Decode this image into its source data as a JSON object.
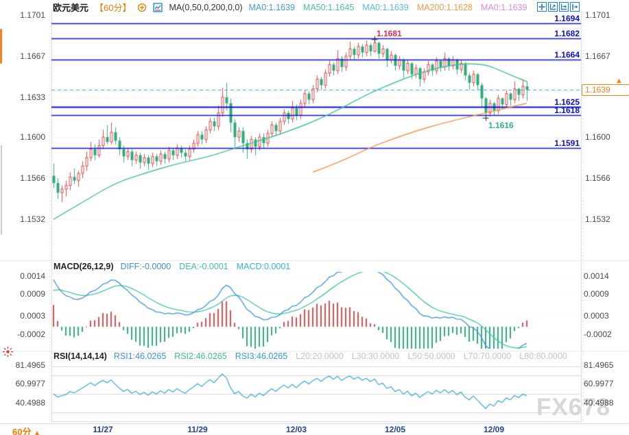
{
  "header": {
    "title": "欧元美元",
    "timeframe": "【60分】",
    "ma_settings": "MA(0,50,0,200,0,0)",
    "readouts": [
      {
        "text": "MA0:1.1639",
        "color": "#3f9be0"
      },
      {
        "text": "MA50:1.1645",
        "color": "#43c39b"
      },
      {
        "text": "MA0:1.1639",
        "color": "#57b9ea"
      },
      {
        "text": "MA200:1.1628",
        "color": "#f59b42"
      },
      {
        "text": "MA0:1.1639",
        "color": "#df8be0"
      }
    ],
    "icons": [
      "add-indicator-icon",
      "chart-type-icon"
    ],
    "toolbar_icons": [
      "move-tool-icon",
      "y-axis-zoom-icon",
      "x-axis-zoom-icon",
      "collapse-panel-icon"
    ]
  },
  "main_chart": {
    "left_axis": [
      "1.1701",
      "1.1667",
      "1.1633",
      "1.1600",
      "1.1566",
      "1.1532"
    ],
    "left_axis_values": [
      1.1701,
      1.1667,
      1.1633,
      1.16,
      1.1566,
      1.1532
    ],
    "right_axis": [
      "1.1701",
      "1.1667",
      "1.1600",
      "1.1566",
      "1.1532"
    ],
    "right_axis_values": [
      1.1701,
      1.1667,
      1.16,
      1.1566,
      1.1532
    ],
    "price_lines": [
      1.1694,
      1.1682,
      1.1664,
      1.1625,
      1.1618,
      1.1591
    ],
    "emphasis_line": 1.1625,
    "current_price": "1.1639",
    "current_price_value": 1.1639,
    "peak_label": {
      "text": "1.1681",
      "value": 1.1681,
      "color": "#e0295a"
    },
    "low_label": {
      "text": "1.1616",
      "value": 1.1616,
      "color": "#2db38a"
    }
  },
  "macd_panel": {
    "title": "MACD(26,12,9)",
    "readouts": [
      {
        "text": "DIFF:-0.0000",
        "color": "#3f8fe0"
      },
      {
        "text": "DEA:-0.0001",
        "color": "#43c39b"
      },
      {
        "text": "MACD:0.0001",
        "color": "#35b2df"
      }
    ],
    "axis": [
      "0.0014",
      "0.0009",
      "0.0003",
      "-0.0002"
    ],
    "axis_values": [
      0.0014,
      0.0009,
      0.0003,
      -0.0002
    ]
  },
  "rsi_panel": {
    "title": "RSI(14,14,14)",
    "readouts": [
      {
        "text": "RSI1:46.0265",
        "color": "#3f8fe0"
      },
      {
        "text": "RSI2:46.0265",
        "color": "#3fc08c"
      },
      {
        "text": "RSI3:46.0265",
        "color": "#2f9ade"
      }
    ],
    "level_readouts": [
      {
        "text": "L20:20.0000",
        "color": "#c3c3c3"
      },
      {
        "text": "L30:30.0000",
        "color": "#c3c3c3"
      },
      {
        "text": "L50:50.0000",
        "color": "#c3c3c3"
      },
      {
        "text": "L70:70.0000",
        "color": "#c3c3c3"
      },
      {
        "text": "L80:80.0000",
        "color": "#c3c3c3"
      }
    ],
    "axis": [
      "81.4965",
      "60.9977",
      "40.4988"
    ],
    "axis_values": [
      81.4965,
      60.9977,
      40.4988
    ]
  },
  "footer": {
    "timeframe_label": "60分",
    "arrow": "▲"
  },
  "watermark": "FX678",
  "colors": {
    "candle_up": "#dc4848",
    "candle_down": "#2ea87a",
    "ma50": "#46be94",
    "ma200": "#f2964e",
    "level_line": "#0a10d0",
    "dashed_current": "#3d9de0",
    "diff_line": "#3f8fe0",
    "dea_line": "#43c39b",
    "hist_up": "#d94f4f",
    "hist_down": "#2fa97c",
    "rsi_line": "#35a5d8",
    "accent_orange": "#f5821f",
    "date_text": "#20409a",
    "grid": "#dcdcdc",
    "rsi_grid": "#d4d4d4",
    "axis_text": "#4a4a4a",
    "watermark": "#d7d7d7",
    "marker_cross": "#222222"
  },
  "chart_data": {
    "type": "candlestick+indicators",
    "title": "EUR/USD 60-minute candlestick chart with MA(50,200), MACD(26,12,9), RSI(14,14,14)",
    "price_offset": 1.1,
    "price_scale": 0.0001,
    "main_ylim": [
      1.15,
      1.1706
    ],
    "macd_ylim": [
      -0.00062,
      0.00153
    ],
    "rsi_ylim": [
      18.4,
      85.9
    ],
    "rsi": {
      "params": [
        14,
        14,
        14
      ],
      "levels": [
        20,
        30,
        50,
        70,
        80
      ]
    },
    "macd": {
      "params": [
        26,
        12,
        9
      ]
    },
    "x_axis": {
      "labels": [
        "11/27",
        "11/29",
        "12/03",
        "12/05",
        "12/09"
      ],
      "bar_index": [
        12,
        35,
        59,
        83,
        107
      ]
    },
    "ma50_anchors": [
      [
        0,
        532
      ],
      [
        8,
        548
      ],
      [
        15,
        562
      ],
      [
        22,
        570
      ],
      [
        30,
        578
      ],
      [
        38,
        584
      ],
      [
        45,
        592
      ],
      [
        52,
        599
      ],
      [
        58,
        606
      ],
      [
        64,
        614
      ],
      [
        70,
        624
      ],
      [
        76,
        635
      ],
      [
        82,
        644
      ],
      [
        88,
        652
      ],
      [
        94,
        658
      ],
      [
        100,
        661
      ],
      [
        105,
        660
      ],
      [
        108,
        656
      ],
      [
        112,
        650
      ],
      [
        115,
        646
      ]
    ],
    "ma200_anchors": [
      [
        63,
        571
      ],
      [
        70,
        580
      ],
      [
        76,
        590
      ],
      [
        82,
        598
      ],
      [
        88,
        605
      ],
      [
        94,
        611
      ],
      [
        100,
        616
      ],
      [
        105,
        620
      ],
      [
        110,
        624
      ],
      [
        115,
        628
      ]
    ],
    "candles": [
      [
        568,
        578,
        558,
        562
      ],
      [
        562,
        566,
        549,
        554
      ],
      [
        554,
        560,
        546,
        557
      ],
      [
        557,
        564,
        551,
        560
      ],
      [
        560,
        571,
        556,
        567
      ],
      [
        567,
        574,
        561,
        564
      ],
      [
        564,
        572,
        559,
        570
      ],
      [
        570,
        580,
        566,
        576
      ],
      [
        576,
        588,
        572,
        583
      ],
      [
        583,
        596,
        580,
        590
      ],
      [
        590,
        594,
        581,
        585
      ],
      [
        585,
        598,
        583,
        593
      ],
      [
        593,
        606,
        590,
        600
      ],
      [
        600,
        610,
        594,
        596
      ],
      [
        596,
        612,
        594,
        604
      ],
      [
        604,
        608,
        594,
        597
      ],
      [
        597,
        600,
        585,
        590
      ],
      [
        590,
        593,
        579,
        584
      ],
      [
        584,
        591,
        581,
        588
      ],
      [
        588,
        590,
        576,
        581
      ],
      [
        581,
        588,
        578,
        585
      ],
      [
        585,
        587,
        574,
        579
      ],
      [
        579,
        586,
        576,
        583
      ],
      [
        583,
        585,
        573,
        578
      ],
      [
        578,
        587,
        575,
        584
      ],
      [
        584,
        586,
        576,
        580
      ],
      [
        580,
        589,
        577,
        586
      ],
      [
        586,
        588,
        578,
        582
      ],
      [
        582,
        592,
        579,
        589
      ],
      [
        589,
        591,
        581,
        585
      ],
      [
        585,
        594,
        582,
        591
      ],
      [
        591,
        593,
        583,
        587
      ],
      [
        587,
        590,
        580,
        584
      ],
      [
        584,
        593,
        581,
        590
      ],
      [
        590,
        598,
        587,
        595
      ],
      [
        595,
        605,
        592,
        602
      ],
      [
        602,
        605,
        594,
        598
      ],
      [
        598,
        609,
        595,
        606
      ],
      [
        606,
        616,
        603,
        613
      ],
      [
        613,
        616,
        605,
        609
      ],
      [
        609,
        626,
        606,
        620
      ],
      [
        620,
        641,
        617,
        633
      ],
      [
        633,
        645,
        622,
        628
      ],
      [
        628,
        632,
        604,
        612
      ],
      [
        612,
        615,
        590,
        600
      ],
      [
        600,
        608,
        596,
        605
      ],
      [
        605,
        608,
        587,
        595
      ],
      [
        595,
        598,
        582,
        590
      ],
      [
        590,
        601,
        587,
        598
      ],
      [
        598,
        600,
        585,
        592
      ],
      [
        592,
        603,
        589,
        600
      ],
      [
        600,
        603,
        591,
        595
      ],
      [
        595,
        606,
        592,
        603
      ],
      [
        603,
        613,
        600,
        610
      ],
      [
        610,
        612,
        601,
        605
      ],
      [
        605,
        616,
        602,
        613
      ],
      [
        613,
        623,
        610,
        620
      ],
      [
        620,
        622,
        611,
        615
      ],
      [
        615,
        630,
        612,
        624
      ],
      [
        624,
        627,
        614,
        618
      ],
      [
        618,
        631,
        615,
        628
      ],
      [
        628,
        639,
        625,
        636
      ],
      [
        636,
        638,
        627,
        631
      ],
      [
        631,
        643,
        628,
        640
      ],
      [
        640,
        651,
        637,
        648
      ],
      [
        648,
        650,
        639,
        643
      ],
      [
        643,
        656,
        640,
        653
      ],
      [
        653,
        663,
        650,
        660
      ],
      [
        660,
        662,
        651,
        655
      ],
      [
        655,
        672,
        652,
        665
      ],
      [
        665,
        667,
        654,
        658
      ],
      [
        658,
        670,
        655,
        667
      ],
      [
        667,
        679,
        664,
        673
      ],
      [
        673,
        675,
        664,
        668
      ],
      [
        668,
        678,
        665,
        675
      ],
      [
        675,
        677,
        666,
        670
      ],
      [
        670,
        680,
        667,
        676
      ],
      [
        676,
        678,
        667,
        671
      ],
      [
        671,
        681,
        670,
        678
      ],
      [
        678,
        679,
        665,
        669
      ],
      [
        669,
        676,
        666,
        673
      ],
      [
        673,
        674,
        658,
        664
      ],
      [
        664,
        671,
        661,
        668
      ],
      [
        668,
        669,
        655,
        659
      ],
      [
        659,
        667,
        656,
        664
      ],
      [
        664,
        665,
        649,
        655
      ],
      [
        655,
        664,
        652,
        661
      ],
      [
        661,
        662,
        648,
        652
      ],
      [
        652,
        660,
        649,
        657
      ],
      [
        657,
        658,
        642,
        648
      ],
      [
        648,
        657,
        645,
        654
      ],
      [
        654,
        663,
        651,
        660
      ],
      [
        660,
        661,
        651,
        655
      ],
      [
        655,
        666,
        652,
        663
      ],
      [
        663,
        664,
        654,
        658
      ],
      [
        658,
        670,
        655,
        665
      ],
      [
        665,
        666,
        655,
        659
      ],
      [
        659,
        667,
        656,
        664
      ],
      [
        664,
        665,
        652,
        656
      ],
      [
        656,
        664,
        653,
        661
      ],
      [
        661,
        662,
        647,
        651
      ],
      [
        651,
        653,
        639,
        645
      ],
      [
        645,
        655,
        642,
        652
      ],
      [
        652,
        653,
        639,
        643
      ],
      [
        643,
        645,
        625,
        632
      ],
      [
        632,
        633,
        616,
        620
      ],
      [
        620,
        631,
        617,
        628
      ],
      [
        628,
        629,
        618,
        622
      ],
      [
        622,
        635,
        619,
        632
      ],
      [
        632,
        633,
        623,
        627
      ],
      [
        627,
        639,
        624,
        636
      ],
      [
        636,
        637,
        626,
        631
      ],
      [
        631,
        646,
        628,
        640
      ],
      [
        640,
        641,
        630,
        635
      ],
      [
        635,
        648,
        632,
        642
      ],
      [
        642,
        646,
        630,
        639
      ]
    ]
  }
}
